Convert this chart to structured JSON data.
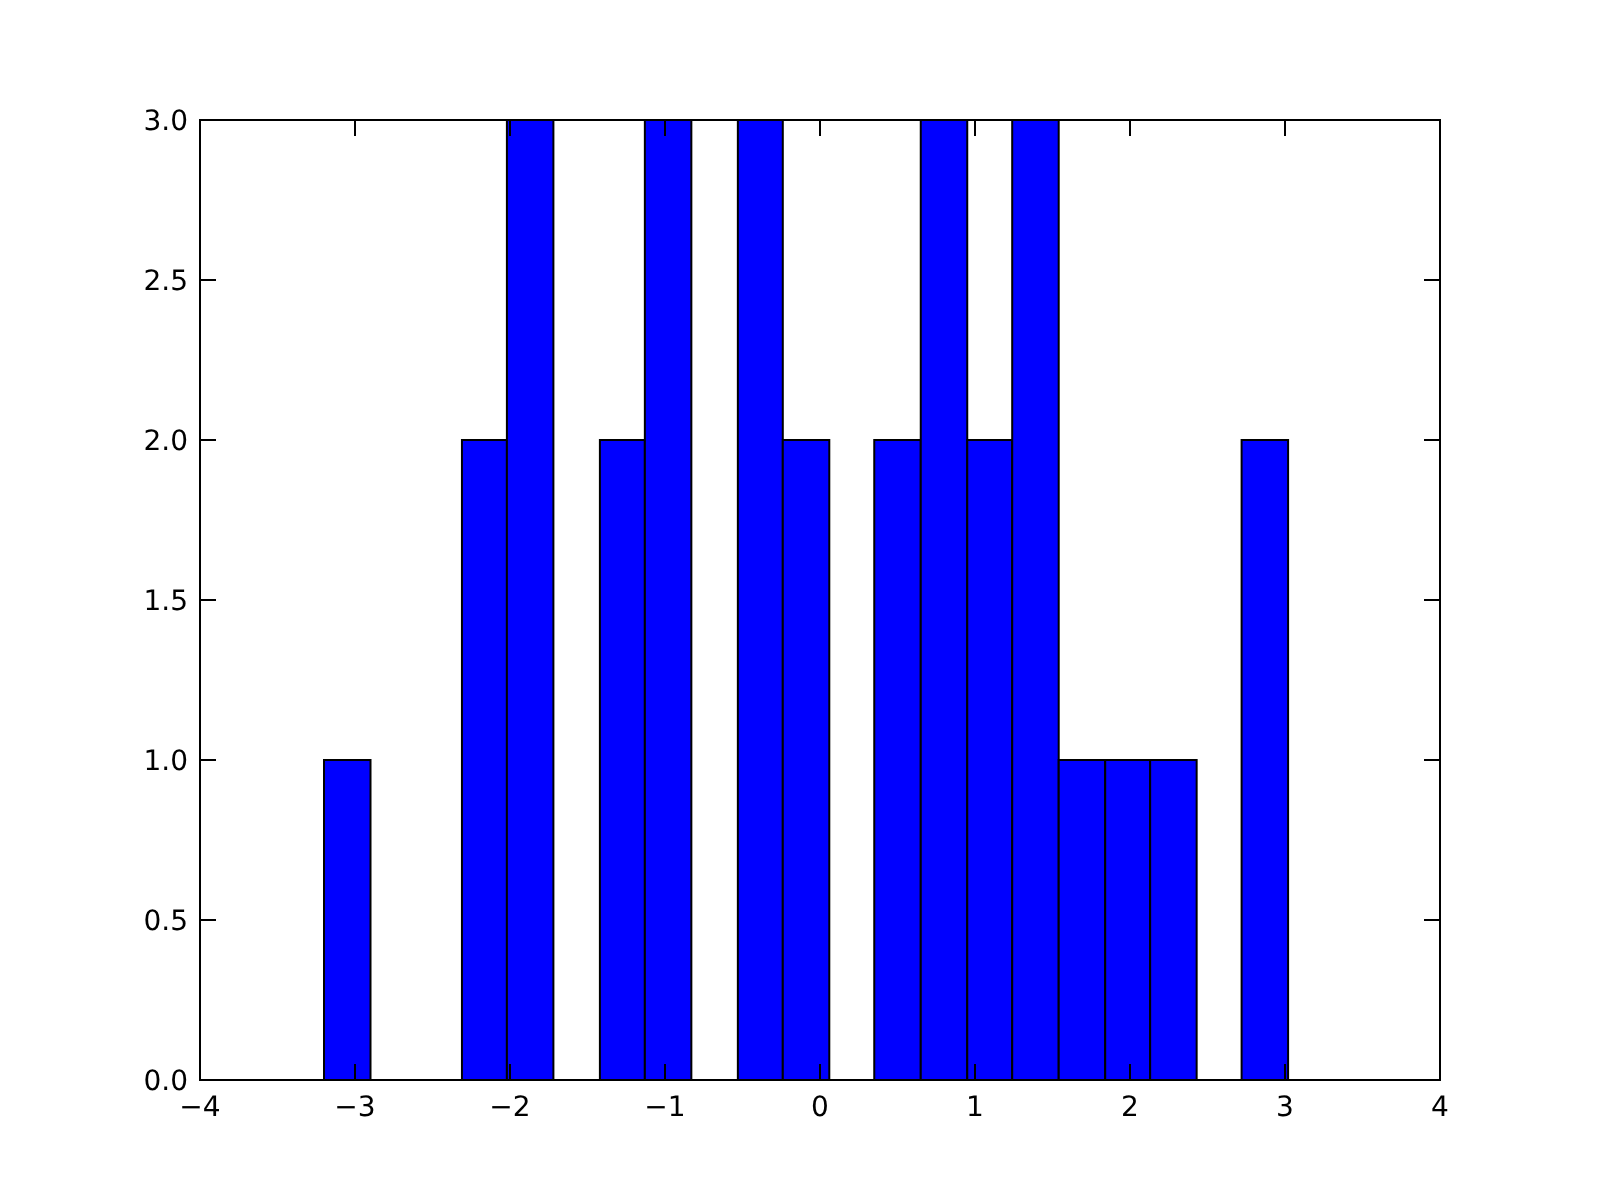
{
  "chart_data": {
    "type": "histogram",
    "color": "#0000ff",
    "bins": [
      -3.2,
      -2.9,
      -2.31,
      -2.02,
      -1.72,
      -1.42,
      -1.13,
      -0.83,
      -0.53,
      -0.24,
      0.06,
      0.35,
      0.65,
      0.95,
      1.24,
      1.54,
      1.84,
      2.13,
      2.43,
      2.72,
      3.02
    ],
    "values": [
      1,
      0,
      2,
      3,
      0,
      2,
      3,
      0,
      3,
      2,
      0,
      2,
      3,
      2,
      3,
      1,
      1,
      1,
      0,
      2
    ],
    "xlim": [
      -4,
      4
    ],
    "xticks": [
      {
        "value": -4,
        "label": "−4"
      },
      {
        "value": -3,
        "label": "−3"
      },
      {
        "value": -2,
        "label": "−2"
      },
      {
        "value": -1,
        "label": "−1"
      },
      0,
      1,
      2,
      3,
      4
    ],
    "ylim": [
      0,
      3
    ],
    "yticks": [
      {
        "value": 0,
        "label": "0.0"
      },
      {
        "value": 0.5,
        "label": "0.5"
      },
      {
        "value": 1,
        "label": "1.0"
      },
      {
        "value": 1.5,
        "label": "1.5"
      },
      {
        "value": 2,
        "label": "2.0"
      },
      {
        "value": 2.5,
        "label": "2.5"
      },
      {
        "value": 3,
        "label": "3.0"
      }
    ],
    "grid": false
  }
}
